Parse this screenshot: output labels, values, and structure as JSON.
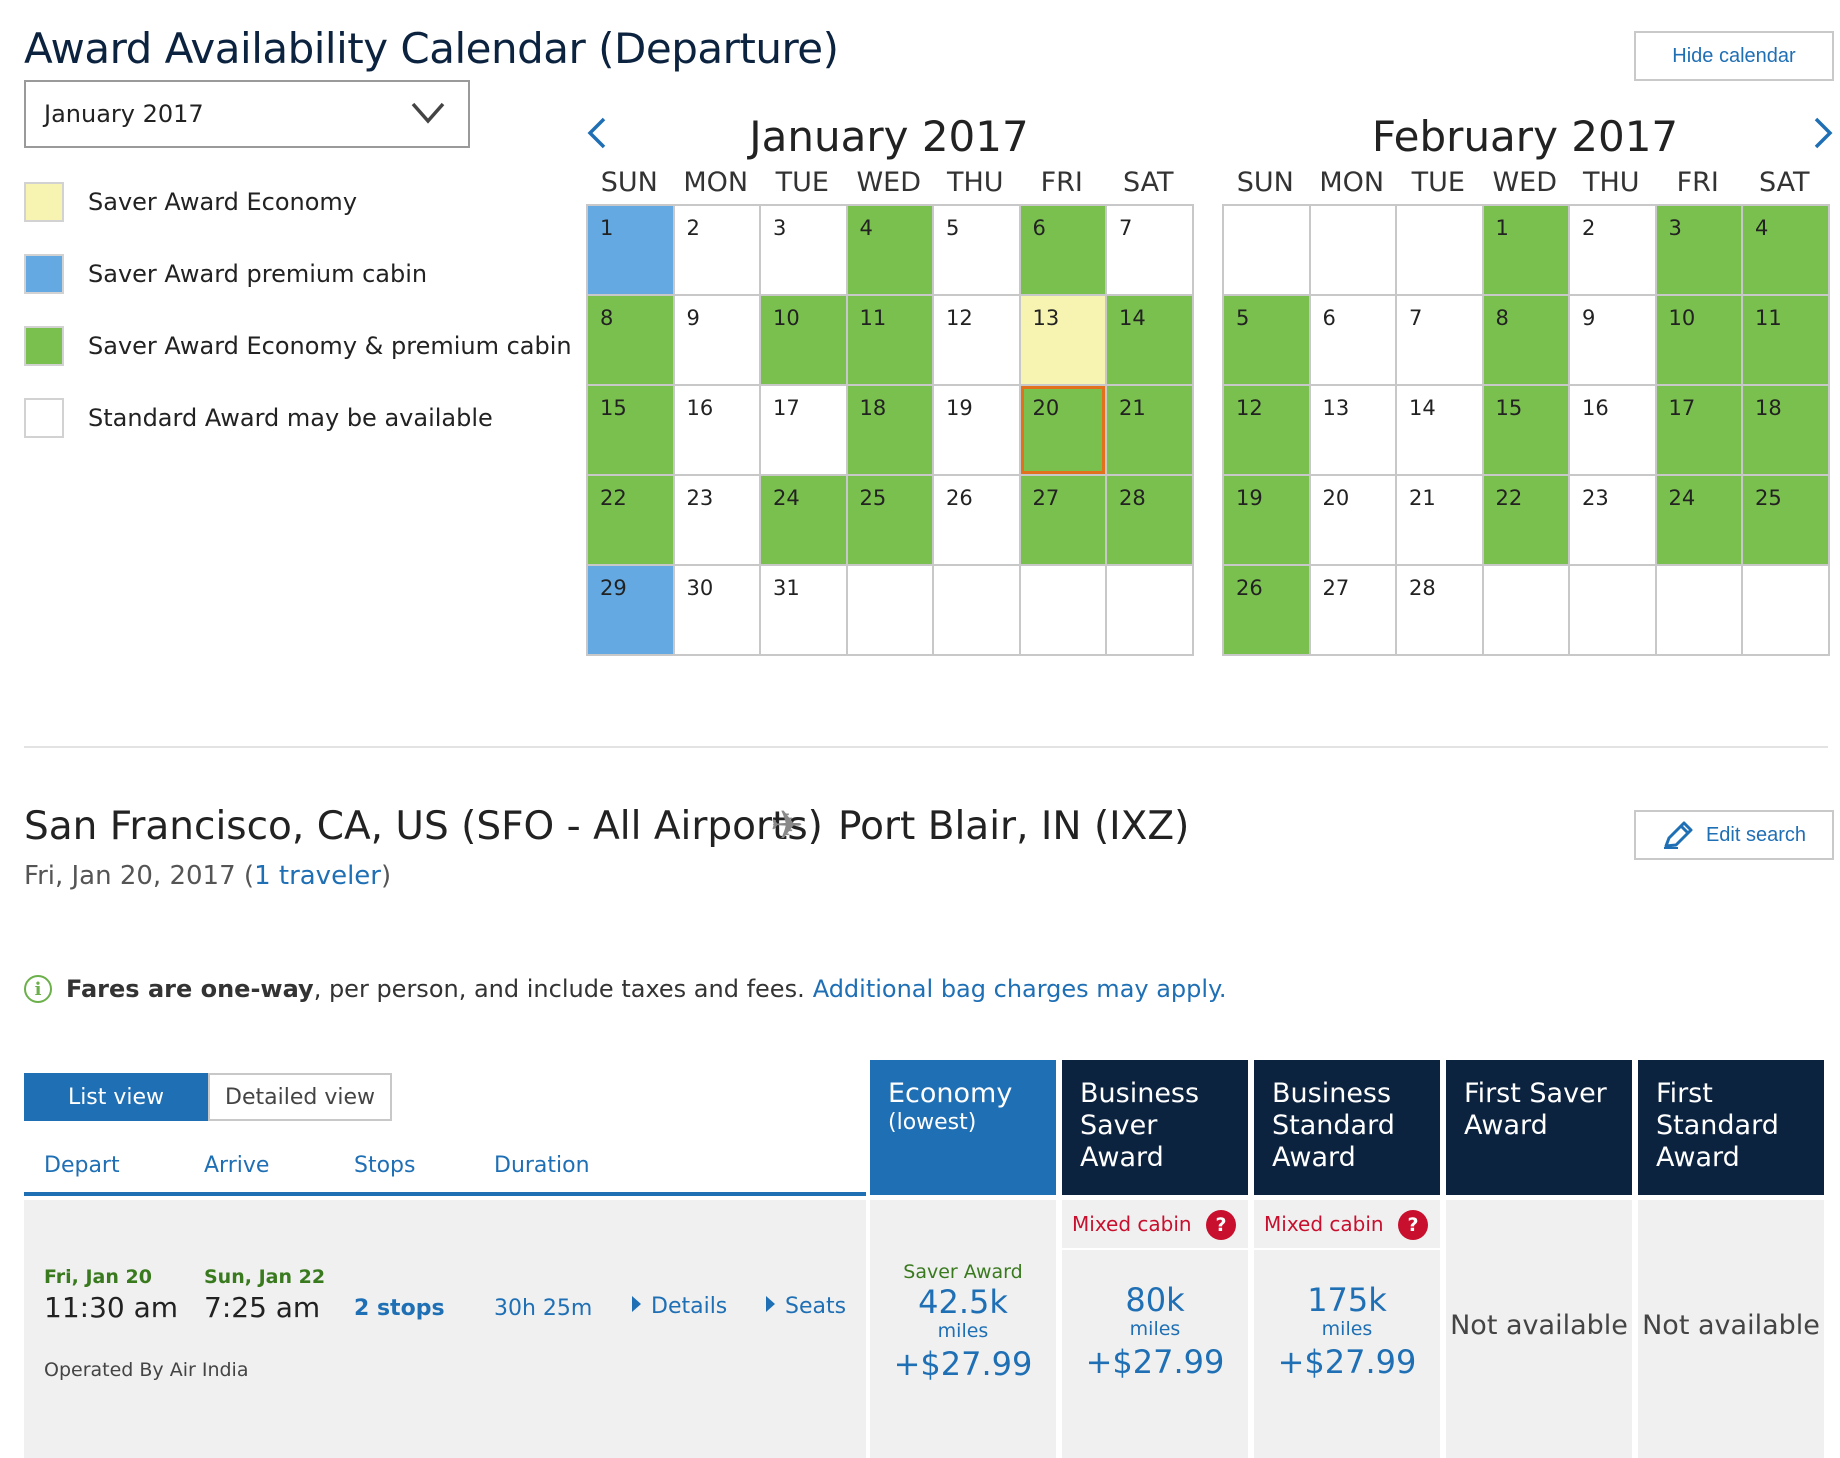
{
  "header": {
    "title": "Award Availability Calendar (Departure)",
    "hide_calendar_label": "Hide calendar"
  },
  "month_select": {
    "value": "January 2017"
  },
  "legend": [
    {
      "label": "Saver Award Economy",
      "color": "#f7f3b0"
    },
    {
      "label": "Saver Award premium cabin",
      "color": "#64a9e1"
    },
    {
      "label": "Saver Award Economy & premium cabin",
      "color": "#7ac04e"
    },
    {
      "label": "Standard Award may be available",
      "color": "#ffffff"
    }
  ],
  "calendar": {
    "weekdays": [
      "SUN",
      "MON",
      "TUE",
      "WED",
      "THU",
      "FRI",
      "SAT"
    ],
    "months": [
      {
        "title": "January 2017",
        "first_weekday": 0,
        "days": 31,
        "selected_day": 20,
        "economy_days": [
          13
        ],
        "premium_days": [
          1,
          29
        ],
        "both_days": [
          4,
          6,
          8,
          10,
          11,
          14,
          15,
          18,
          20,
          21,
          22,
          24,
          25,
          27,
          28
        ]
      },
      {
        "title": "February 2017",
        "first_weekday": 3,
        "days": 28,
        "selected_day": null,
        "economy_days": [],
        "premium_days": [],
        "both_days": [
          1,
          3,
          4,
          5,
          8,
          10,
          11,
          12,
          15,
          17,
          18,
          19,
          22,
          24,
          25,
          26
        ]
      }
    ],
    "prev_icon": "chevron-left-icon",
    "next_icon": "chevron-right-icon"
  },
  "route": {
    "origin": "San Francisco, CA, US (SFO - All Airports)",
    "destination": "Port Blair, IN (IXZ)",
    "date": "Fri, Jan 20, 2017",
    "travelers_link": "1 traveler",
    "edit_search_label": "Edit search"
  },
  "info": {
    "bold": "Fares are one-way",
    "text": ", per person, and include taxes and fees.",
    "link": "Additional bag charges may apply."
  },
  "views": {
    "list": "List view",
    "detailed": "Detailed view"
  },
  "columns": {
    "depart": "Depart",
    "arrive": "Arrive",
    "stops": "Stops",
    "duration": "Duration"
  },
  "fare_columns": [
    {
      "title": "Economy",
      "subtitle": "(lowest)",
      "bg": "#1f6fb5"
    },
    {
      "title": "Business Saver Award",
      "subtitle": "",
      "bg": "#0c2340"
    },
    {
      "title": "Business Standard Award",
      "subtitle": "",
      "bg": "#0c2340"
    },
    {
      "title": "First Saver Award",
      "subtitle": "",
      "bg": "#0c2340"
    },
    {
      "title": "First Standard Award",
      "subtitle": "",
      "bg": "#0c2340"
    }
  ],
  "flight": {
    "depart_date": "Fri, Jan 20",
    "depart_time": "11:30 am",
    "arrive_date": "Sun, Jan 22",
    "arrive_time": "7:25 am",
    "stops": "2 stops",
    "duration": "30h 25m",
    "details_link": "Details",
    "seats_link": "Seats",
    "operated_by": "Operated By Air India",
    "fares": [
      {
        "tag": "Saver Award",
        "mixed": "",
        "miles": "42.5k",
        "miles_label": "miles",
        "tax": "+$27.99",
        "na": ""
      },
      {
        "tag": "",
        "mixed": "Mixed cabin",
        "miles": "80k",
        "miles_label": "miles",
        "tax": "+$27.99",
        "na": ""
      },
      {
        "tag": "",
        "mixed": "Mixed cabin",
        "miles": "175k",
        "miles_label": "miles",
        "tax": "+$27.99",
        "na": ""
      },
      {
        "tag": "",
        "mixed": "",
        "miles": "",
        "miles_label": "",
        "tax": "",
        "na": "Not available"
      },
      {
        "tag": "",
        "mixed": "",
        "miles": "",
        "miles_label": "",
        "tax": "",
        "na": "Not available"
      }
    ]
  }
}
